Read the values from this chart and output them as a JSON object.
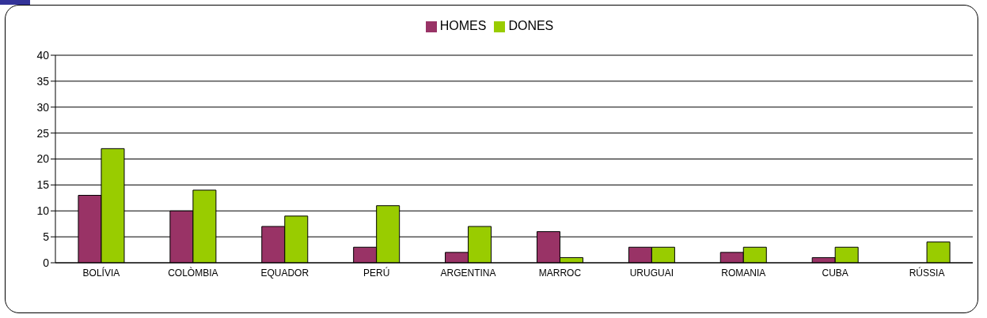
{
  "chart_data": {
    "type": "bar",
    "categories": [
      "BOLÍVIA",
      "COLÒMBIA",
      "EQUADOR",
      "PERÚ",
      "ARGENTINA",
      "MARROC",
      "URUGUAI",
      "ROMANIA",
      "CUBA",
      "RÚSSIA"
    ],
    "series": [
      {
        "name": "HOMES",
        "color": "#993366",
        "values": [
          13,
          10,
          7,
          3,
          2,
          6,
          3,
          2,
          1,
          0
        ]
      },
      {
        "name": "DONES",
        "color": "#99cc00",
        "values": [
          22,
          14,
          9,
          11,
          7,
          1,
          3,
          3,
          3,
          4
        ]
      }
    ],
    "ylim": [
      0,
      40
    ],
    "yticks": [
      0,
      5,
      10,
      15,
      20,
      25,
      30,
      35,
      40
    ],
    "grid": "y",
    "legend": "top"
  }
}
